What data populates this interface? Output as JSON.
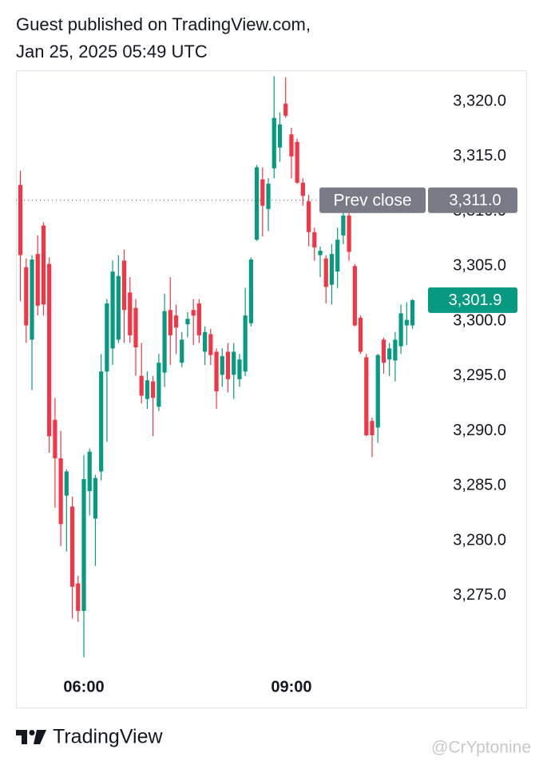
{
  "header": {
    "line1": "Guest published on TradingView.com,",
    "line2": "Jan 25, 2025 05:49 UTC"
  },
  "footer": {
    "brand": "TradingView",
    "watermark": "@CrYptonine"
  },
  "chart_data": {
    "type": "candlestick",
    "up_color": "#089981",
    "down_color": "#f23645",
    "categories": [
      null,
      null,
      null,
      null,
      null,
      null,
      null,
      null,
      null,
      null,
      null,
      "06:00",
      null,
      null,
      null,
      null,
      null,
      null,
      null,
      null,
      null,
      null,
      null,
      null,
      null,
      null,
      null,
      null,
      null,
      null,
      null,
      null,
      null,
      null,
      null,
      null,
      null,
      null,
      null,
      null,
      null,
      null,
      null,
      null,
      null,
      null,
      null,
      "09:00",
      null,
      null,
      null,
      null,
      null,
      null,
      null,
      null,
      null,
      null,
      null,
      null,
      null,
      null,
      null,
      null,
      null,
      null,
      null,
      null,
      null
    ],
    "open": [
      3312.4,
      3304.9,
      3298.3,
      3306.1,
      3308.7,
      3305.2,
      3291,
      3287.5,
      3284.1,
      3283.1,
      3276.1,
      3273.6,
      3284.5,
      3282,
      3286.3,
      3295.4,
      3297.5,
      3298.3,
      3305.5,
      3302.6,
      3301.2,
      3295,
      3292.9,
      3294.5,
      3292.2,
      3295.3,
      3301,
      3300.5,
      3296.2,
      3299.7,
      3301,
      3301.6,
      3297.2,
      3298.8,
      3297.2,
      3295.1,
      3297.2,
      3295.1,
      3294.7,
      3295.4,
      3299.8,
      3307.4,
      3312.9,
      3310.2,
      3313.9,
      3315.8,
      3319.8,
      3317,
      3316.3,
      3312.6,
      3310.9,
      3308.1,
      3306,
      3305.7,
      3303.3,
      3304.5,
      3307.8,
      3309.6,
      3305,
      3300.3,
      3296.7,
      3290.9,
      3290.3,
      3298.3,
      3296.5,
      3296.4,
      3297.7,
      3299.6,
      3299.6
    ],
    "high": [
      3313.7,
      3305.7,
      3306,
      3307.8,
      3309,
      3305.8,
      3293,
      3290,
      3286.5,
      3284,
      3276.8,
      3287.8,
      3288.4,
      3286,
      3297,
      3302,
      3305.5,
      3306,
      3306.5,
      3304,
      3302,
      3298,
      3295.4,
      3295,
      3297,
      3302.5,
      3304,
      3301.5,
      3299,
      3300.8,
      3302,
      3302,
      3299.5,
      3299.3,
      3297.5,
      3297.5,
      3298,
      3298,
      3297,
      3303,
      3305.8,
      3314.2,
      3314,
      3313,
      3322.3,
      3319,
      3322.2,
      3317.6,
      3316.6,
      3313,
      3311.5,
      3308.5,
      3306.8,
      3306,
      3307,
      3308.5,
      3310.5,
      3310,
      3305.2,
      3300.5,
      3297,
      3291.2,
      3297,
      3298.5,
      3298,
      3299,
      3301.5,
      3301.7,
      3302
    ],
    "low": [
      3301.8,
      3298,
      3293.7,
      3300.5,
      3300.5,
      3288,
      3283,
      3279.5,
      3279,
      3272.9,
      3272.6,
      3269.4,
      3282.3,
      3277.7,
      3285.5,
      3289,
      3296,
      3298,
      3298,
      3298,
      3295,
      3292.5,
      3292,
      3289.5,
      3291.8,
      3294,
      3296,
      3297,
      3295.8,
      3298.5,
      3297.8,
      3298,
      3296,
      3296,
      3292,
      3294,
      3293.5,
      3292.9,
      3294,
      3295,
      3299.5,
      3307.3,
      3307.7,
      3308.2,
      3313,
      3314.5,
      3318.5,
      3313,
      3312.5,
      3310.5,
      3306.8,
      3305.5,
      3304,
      3301.6,
      3301.5,
      3303,
      3307,
      3305.5,
      3299.5,
      3297,
      3289.5,
      3287.6,
      3288.9,
      3295.2,
      3295,
      3294.5,
      3297,
      3297.8,
      3299.3
    ],
    "close": [
      3306,
      3299.6,
      3305.6,
      3301.4,
      3301.5,
      3289.5,
      3287.5,
      3281.5,
      3286.3,
      3275.8,
      3273.6,
      3285.6,
      3288.1,
      3285.7,
      3295.4,
      3301.6,
      3304.5,
      3304.1,
      3301,
      3298.7,
      3297.6,
      3293.2,
      3294.6,
      3293,
      3296.2,
      3300.9,
      3298.7,
      3299.4,
      3298.3,
      3300.2,
      3300.5,
      3298.7,
      3299,
      3296.9,
      3293.6,
      3296.8,
      3294.7,
      3297.2,
      3296.5,
      3300.5,
      3305.6,
      3314,
      3310.5,
      3312.5,
      3318.5,
      3317.9,
      3318.7,
      3315,
      3312.6,
      3311.4,
      3308.1,
      3306.7,
      3306.4,
      3303.1,
      3306.1,
      3307.4,
      3309.6,
      3306.3,
      3299.6,
      3297.2,
      3289.6,
      3289.6,
      3296.9,
      3296.2,
      3297.5,
      3298.3,
      3300.7,
      3300.1,
      3301.9
    ],
    "ylim": [
      3269,
      3322.8
    ],
    "yticks": [
      {
        "value": 3275,
        "label": "3,275.0"
      },
      {
        "value": 3280,
        "label": "3,280.0"
      },
      {
        "value": 3285,
        "label": "3,285.0"
      },
      {
        "value": 3290,
        "label": "3,290.0"
      },
      {
        "value": 3295,
        "label": "3,295.0"
      },
      {
        "value": 3300,
        "label": "3,300.0"
      },
      {
        "value": 3305,
        "label": "3,305.0"
      },
      {
        "value": 3310,
        "label": "3,310.0"
      },
      {
        "value": 3315,
        "label": "3,315.0"
      },
      {
        "value": 3320,
        "label": "3,320.0"
      }
    ],
    "prev_close": {
      "label": "Prev close",
      "value": 3311.0,
      "value_label": "3,311.0",
      "color": "#787b86"
    },
    "last_price": {
      "value": 3301.9,
      "value_label": "3,301.9"
    }
  }
}
